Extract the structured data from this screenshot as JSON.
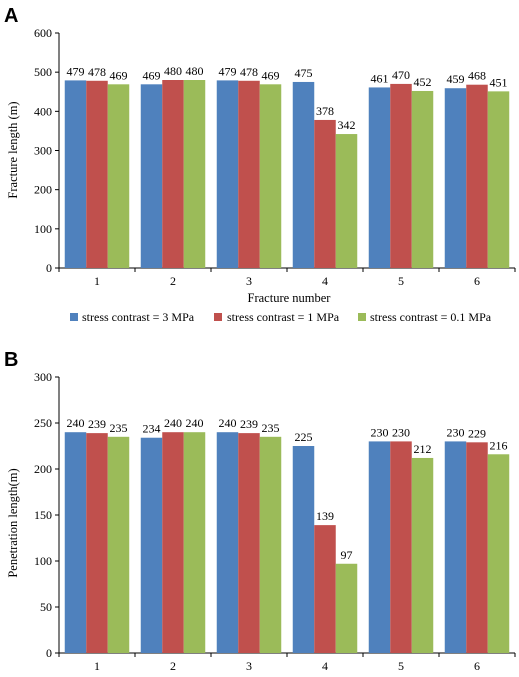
{
  "colors": {
    "s1": "#4F81BD",
    "s2": "#C0504D",
    "s3": "#9BBB59",
    "grid": "#000000"
  },
  "legend": [
    "stress contrast = 3 MPa",
    "stress contrast = 1 MPa",
    "stress contrast = 0.1 MPa"
  ],
  "chart_data": [
    {
      "panel": "A",
      "type": "bar",
      "ylabel": "Fracture length (m)",
      "xlabel": "Fracture number",
      "ylim": [
        0,
        600
      ],
      "yticks": [
        0,
        100,
        200,
        300,
        400,
        500,
        600
      ],
      "categories": [
        "1",
        "2",
        "3",
        "4",
        "5",
        "6"
      ],
      "series": [
        {
          "name": "stress contrast = 3 MPa",
          "values": [
            479,
            469,
            479,
            475,
            461,
            459
          ]
        },
        {
          "name": "stress contrast = 1 MPa",
          "values": [
            478,
            480,
            478,
            378,
            470,
            468
          ]
        },
        {
          "name": "stress contrast = 0.1 MPa",
          "values": [
            469,
            480,
            469,
            342,
            452,
            451
          ]
        }
      ],
      "legend_position": "bottom"
    },
    {
      "panel": "B",
      "type": "bar",
      "ylabel": "Penetration length(m)",
      "xlabel": "",
      "ylim": [
        0,
        300
      ],
      "yticks": [
        0,
        50,
        100,
        150,
        200,
        250,
        300
      ],
      "categories": [
        "1",
        "2",
        "3",
        "4",
        "5",
        "6"
      ],
      "series": [
        {
          "name": "stress contrast = 3 MPa",
          "values": [
            240,
            234,
            240,
            225,
            230,
            230
          ]
        },
        {
          "name": "stress contrast = 1 MPa",
          "values": [
            239,
            240,
            239,
            139,
            230,
            229
          ]
        },
        {
          "name": "stress contrast = 0.1 MPa",
          "values": [
            235,
            240,
            235,
            97,
            212,
            216
          ]
        }
      ]
    }
  ]
}
